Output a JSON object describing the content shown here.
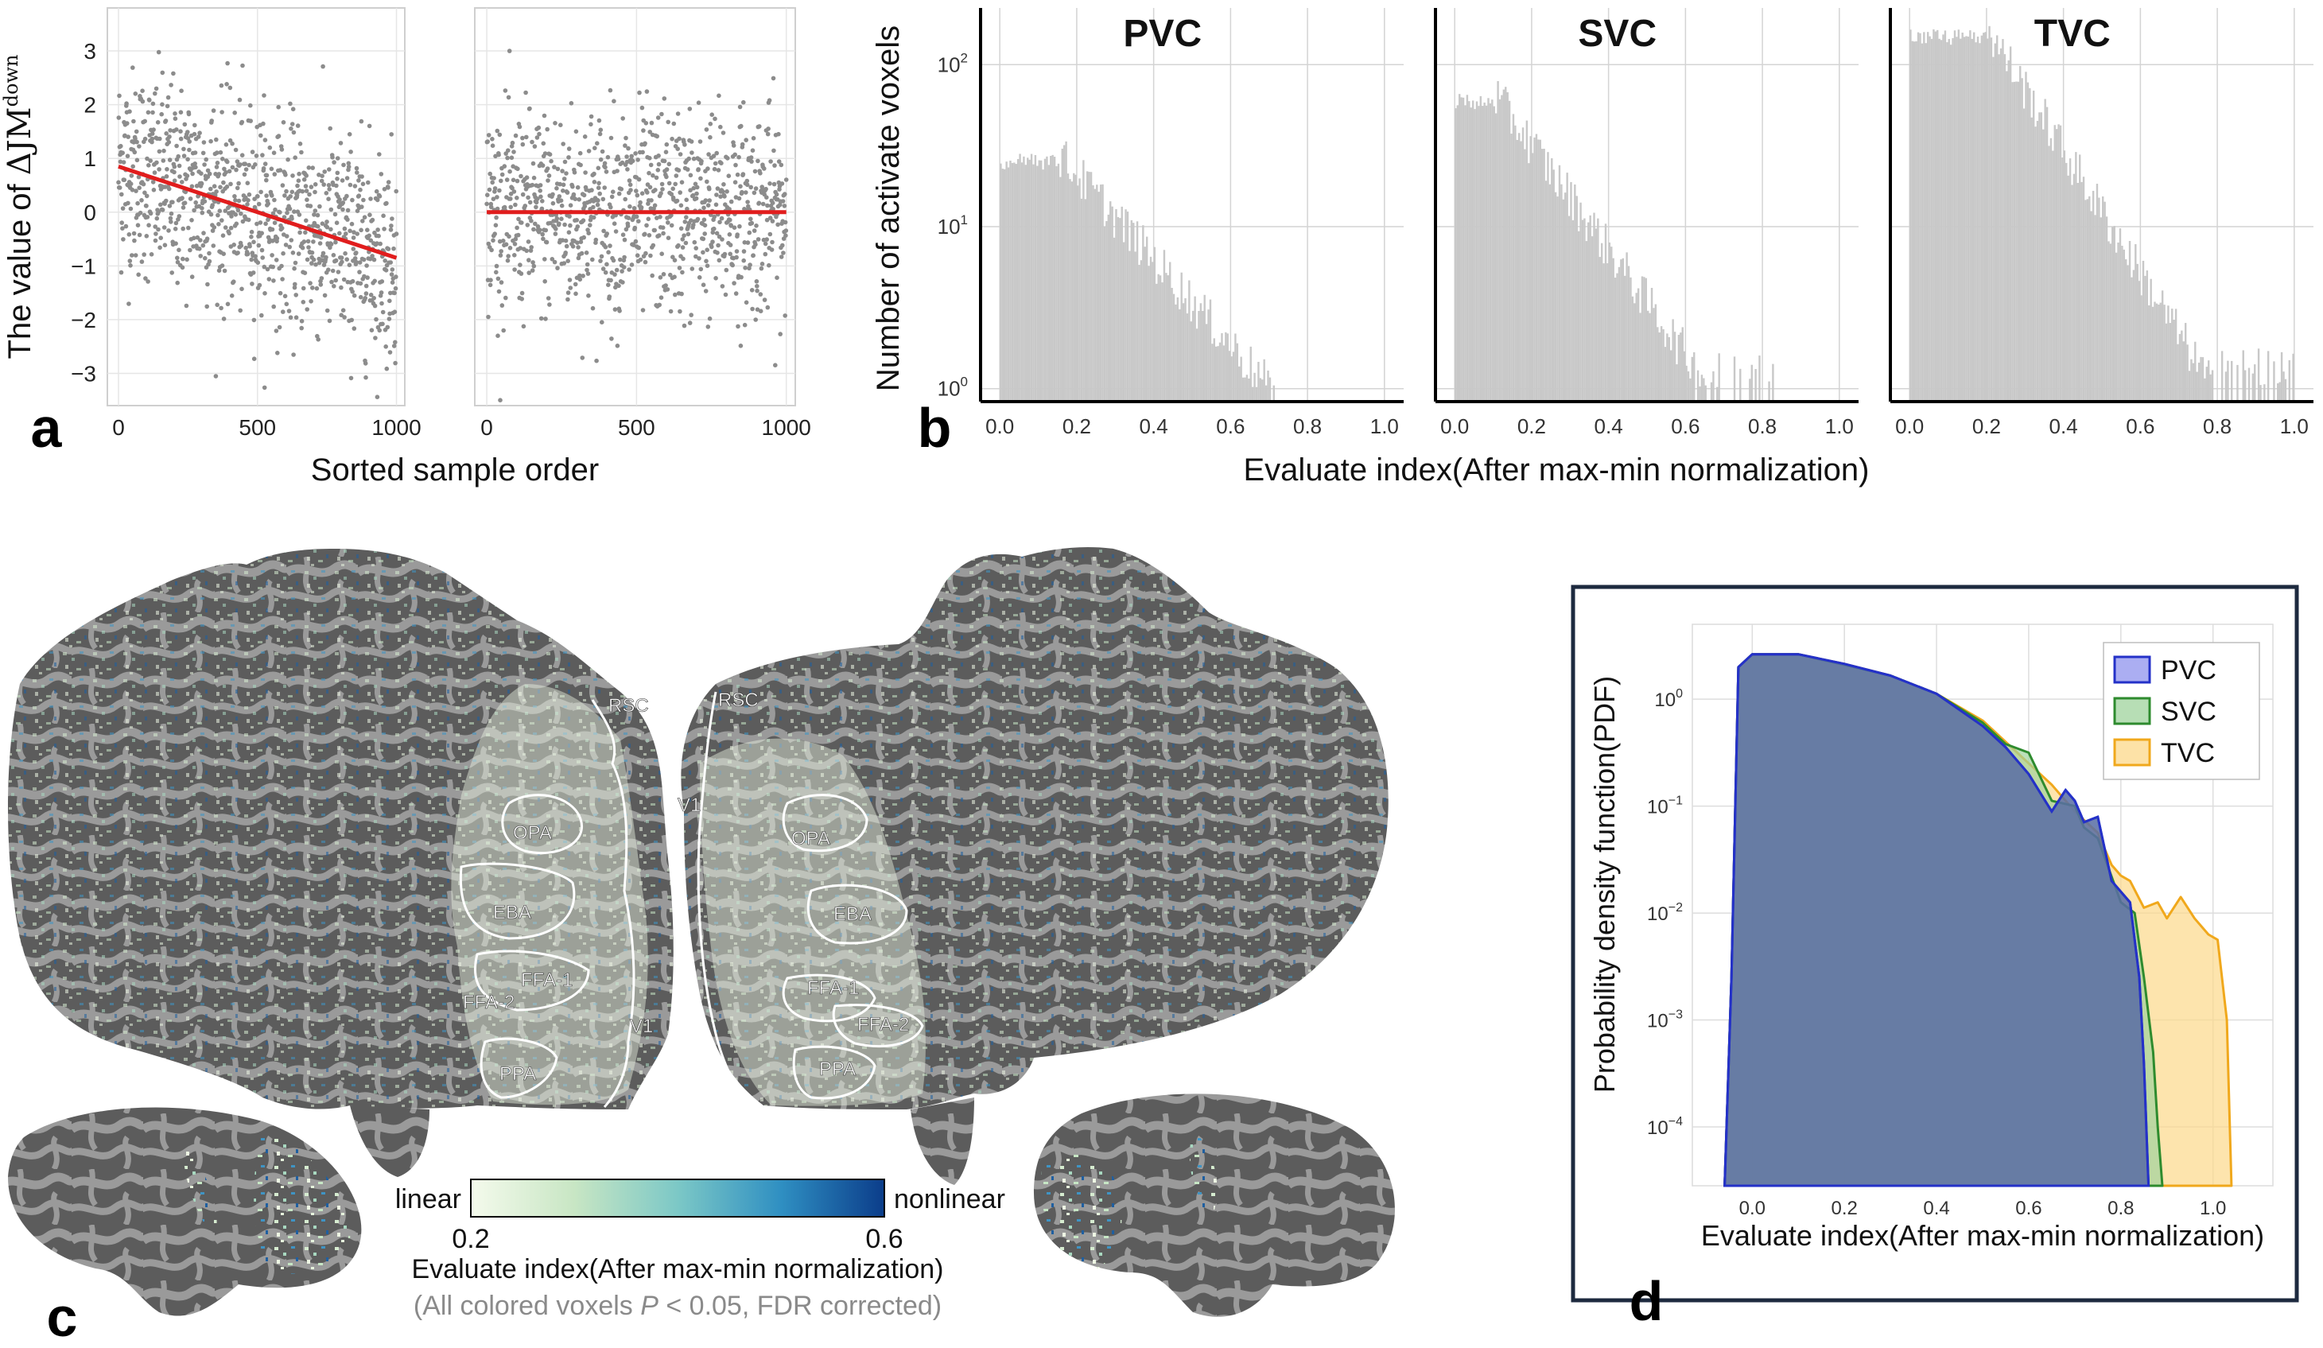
{
  "panel_labels": {
    "a": "a",
    "b": "b",
    "c": "c",
    "d": "d"
  },
  "chart_data": [
    {
      "id": "a_left",
      "type": "scatter",
      "title": "",
      "ylabel_main": "The value of ",
      "ylabel_math": "ΔJM",
      "ylabel_sup": "down",
      "xlabel": "Sorted sample order",
      "xlim": [
        -40,
        1030
      ],
      "ylim": [
        -3.6,
        3.8
      ],
      "x_ticks": [
        "0",
        "500",
        "1000"
      ],
      "x_tick_values": [
        0,
        500,
        1000
      ],
      "y_ticks": [
        "3",
        "2",
        "1",
        "0",
        "−1",
        "−2",
        "−3"
      ],
      "y_tick_values": [
        3,
        2,
        1,
        0,
        -1,
        -2,
        -3
      ],
      "n_points": 1000,
      "point_color": "#8c8c8c",
      "fit_line": {
        "x": [
          0,
          1000
        ],
        "y": [
          0.85,
          -0.85
        ],
        "color": "#e11d1d"
      }
    },
    {
      "id": "a_right",
      "type": "scatter",
      "title": "",
      "xlabel": "",
      "xlim": [
        -40,
        1030
      ],
      "ylim": [
        -3.6,
        3.8
      ],
      "x_ticks": [
        "0",
        "500",
        "1000"
      ],
      "x_tick_values": [
        0,
        500,
        1000
      ],
      "n_points": 1000,
      "point_color": "#8c8c8c",
      "fit_line": {
        "x": [
          0,
          1000
        ],
        "y": [
          0.0,
          0.0
        ],
        "color": "#e11d1d"
      }
    },
    {
      "id": "b",
      "type": "bar",
      "scale_y": "log",
      "ylabel": "Number of activate voxels",
      "xlabel": "Evaluate index(After max-min normalization)",
      "xlim": [
        -0.05,
        1.05
      ],
      "ylim_log10": [
        -0.08,
        2.35
      ],
      "x_ticks": [
        "0.0",
        "0.2",
        "0.4",
        "0.6",
        "0.8",
        "1.0"
      ],
      "x_tick_values": [
        0.0,
        0.2,
        0.4,
        0.6,
        0.8,
        1.0
      ],
      "y_ticks_base": [
        "10",
        "10",
        "10"
      ],
      "y_ticks_exp": [
        "2",
        "1",
        "0"
      ],
      "y_tick_values_log10": [
        2,
        1,
        0
      ],
      "bar_color": "#c8c8c8",
      "series": [
        {
          "name": "PVC",
          "peak_log10": 1.45,
          "decay_start": 0.15,
          "cutoff": 0.72,
          "tail_cutoff": 0.72
        },
        {
          "name": "SVC",
          "peak_log10": 1.82,
          "decay_start": 0.1,
          "cutoff": 0.68,
          "tail_cutoff": 0.83
        },
        {
          "name": "TVC",
          "peak_log10": 2.22,
          "decay_start": 0.2,
          "cutoff": 0.8,
          "tail_cutoff": 1.0
        }
      ]
    },
    {
      "id": "d",
      "type": "area",
      "scale_y": "log",
      "ylabel": "Probability density function(PDF)",
      "xlabel": "Evaluate index(After max-min normalization)",
      "xlim": [
        -0.13,
        1.13
      ],
      "ylim_log10": [
        -4.55,
        0.7
      ],
      "x_ticks": [
        "0.0",
        "0.2",
        "0.4",
        "0.6",
        "0.8",
        "1.0"
      ],
      "x_tick_values": [
        0.0,
        0.2,
        0.4,
        0.6,
        0.8,
        1.0
      ],
      "y_ticks_base": [
        "10",
        "10",
        "10",
        "10",
        "10"
      ],
      "y_ticks_exp": [
        "0",
        "−1",
        "−2",
        "−3",
        "−4"
      ],
      "y_tick_values_log10": [
        0,
        -1,
        -2,
        -3,
        -4
      ],
      "legend": "top-right",
      "series": [
        {
          "name": "TVC",
          "fill": "#fcd88a",
          "stroke": "#f0a81c",
          "x": [
            -0.06,
            -0.045,
            -0.03,
            0.0,
            0.1,
            0.2,
            0.3,
            0.4,
            0.5,
            0.55,
            0.6,
            0.65,
            0.7,
            0.75,
            0.78,
            0.8,
            0.82,
            0.85,
            0.88,
            0.9,
            0.93,
            0.96,
            0.99,
            1.01,
            1.03,
            1.04
          ],
          "log10_y": [
            -4.6,
            -2.6,
            0.3,
            0.42,
            0.42,
            0.33,
            0.22,
            0.05,
            -0.2,
            -0.4,
            -0.6,
            -0.8,
            -1.05,
            -1.25,
            -1.55,
            -1.65,
            -1.7,
            -1.95,
            -1.9,
            -2.05,
            -1.85,
            -2.05,
            -2.2,
            -2.25,
            -3.0,
            -4.6
          ]
        },
        {
          "name": "SVC",
          "fill": "#9fd39c",
          "stroke": "#2e8b2e",
          "x": [
            -0.06,
            -0.045,
            -0.03,
            0.0,
            0.1,
            0.2,
            0.3,
            0.4,
            0.5,
            0.55,
            0.6,
            0.65,
            0.7,
            0.72,
            0.75,
            0.8,
            0.83,
            0.85,
            0.87,
            0.88,
            0.89
          ],
          "log10_y": [
            -4.6,
            -2.6,
            0.3,
            0.42,
            0.42,
            0.32,
            0.22,
            0.05,
            -0.22,
            -0.42,
            -0.5,
            -0.95,
            -1.0,
            -1.2,
            -1.3,
            -1.9,
            -2.0,
            -2.6,
            -3.3,
            -4.0,
            -4.6
          ]
        },
        {
          "name": "PVC",
          "fill": "#8f93ee",
          "stroke": "#2431c8",
          "x": [
            -0.06,
            -0.045,
            -0.03,
            0.0,
            0.1,
            0.2,
            0.3,
            0.4,
            0.5,
            0.55,
            0.6,
            0.65,
            0.68,
            0.7,
            0.72,
            0.75,
            0.78,
            0.8,
            0.82,
            0.84,
            0.85,
            0.86
          ],
          "log10_y": [
            -4.6,
            -2.6,
            0.3,
            0.42,
            0.42,
            0.33,
            0.22,
            0.05,
            -0.25,
            -0.45,
            -0.7,
            -1.05,
            -0.85,
            -0.95,
            -1.15,
            -1.1,
            -1.7,
            -1.8,
            -1.9,
            -2.6,
            -3.4,
            -4.6
          ]
        }
      ]
    }
  ],
  "panel_c": {
    "rois_left": [
      "RSC",
      "OPA",
      "EBA",
      "FFA-1",
      "FFA-2",
      "PPA",
      "V1"
    ],
    "rois_right": [
      "RSC",
      "V1",
      "OPA",
      "EBA",
      "FFA-1",
      "FFA-2",
      "PPA"
    ],
    "colorbar": {
      "left_label": "linear",
      "right_label": "nonlinear",
      "min_label": "0.2",
      "max_label": "0.6",
      "title": "Evaluate index(After max-min normalization)",
      "note_prefix": "(All colored voxels ",
      "note_p": "P",
      "note_suffix": " < 0.05, FDR corrected)",
      "colors": [
        "#f4faec",
        "#c8e6c4",
        "#7cc8c6",
        "#2f8fc2",
        "#0b3d8a"
      ]
    },
    "surface_colors": {
      "gyri": "#9a9a9a",
      "sulci": "#5a5a5a"
    }
  }
}
